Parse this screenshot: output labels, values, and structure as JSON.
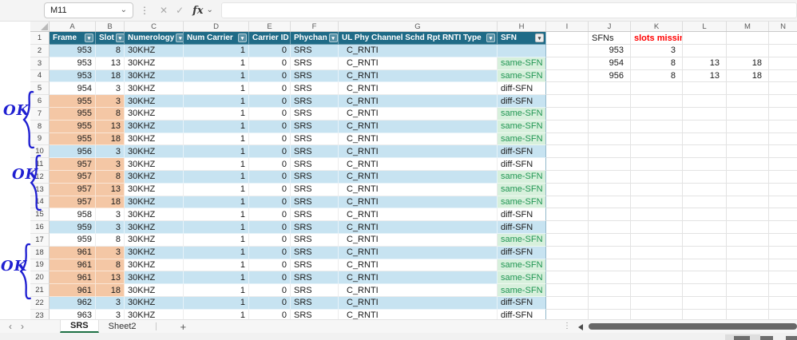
{
  "colors": {
    "header_fill": "#1F6B87",
    "band_blue": "#C7E3F1",
    "orange": "#F4C7A5",
    "green_bg": "#D7F0DC",
    "green_text": "#219653",
    "red": "#FF0000",
    "annotation_blue": "#1F1FD1",
    "tab_green": "#1D7044"
  },
  "icons": {
    "chevron_down": "⌄",
    "dots": "⋮",
    "cancel": "✕",
    "enter": "✓",
    "filter_chevron": "▾",
    "prev": "‹",
    "next": "›",
    "add": "+"
  },
  "formula_bar": {
    "name_box": "M11",
    "fx_label": "fx",
    "formula_value": ""
  },
  "grid": {
    "column_letters": [
      "A",
      "B",
      "C",
      "D",
      "E",
      "F",
      "G",
      "H",
      "I",
      "J",
      "K",
      "L",
      "M",
      "N"
    ],
    "row_numbers": [
      1,
      2,
      3,
      4,
      5,
      6,
      7,
      8,
      9,
      10,
      11,
      12,
      13,
      14,
      15,
      16,
      17,
      18,
      19,
      20,
      21,
      22,
      23
    ]
  },
  "table": {
    "headers": [
      "Frame",
      "Slot",
      "Numerology",
      "Num Carrier",
      "Carrier ID",
      "Phychan",
      "UL Phy Channel Schd Rpt RNTI Type",
      "SFN"
    ],
    "rows": [
      {
        "n": 2,
        "frame": "953",
        "slot": "8",
        "numerology": "30KHZ",
        "num_carrier": "1",
        "carrier_id": "0",
        "phychan": "SRS",
        "rnti_type": "C_RNTI",
        "sfn": "",
        "orange": false
      },
      {
        "n": 3,
        "frame": "953",
        "slot": "13",
        "numerology": "30KHZ",
        "num_carrier": "1",
        "carrier_id": "0",
        "phychan": "SRS",
        "rnti_type": "C_RNTI",
        "sfn": "same-SFN",
        "orange": false
      },
      {
        "n": 4,
        "frame": "953",
        "slot": "18",
        "numerology": "30KHZ",
        "num_carrier": "1",
        "carrier_id": "0",
        "phychan": "SRS",
        "rnti_type": "C_RNTI",
        "sfn": "same-SFN",
        "orange": false
      },
      {
        "n": 5,
        "frame": "954",
        "slot": "3",
        "numerology": "30KHZ",
        "num_carrier": "1",
        "carrier_id": "0",
        "phychan": "SRS",
        "rnti_type": "C_RNTI",
        "sfn": "diff-SFN",
        "orange": false
      },
      {
        "n": 6,
        "frame": "955",
        "slot": "3",
        "numerology": "30KHZ",
        "num_carrier": "1",
        "carrier_id": "0",
        "phychan": "SRS",
        "rnti_type": "C_RNTI",
        "sfn": "diff-SFN",
        "orange": true
      },
      {
        "n": 7,
        "frame": "955",
        "slot": "8",
        "numerology": "30KHZ",
        "num_carrier": "1",
        "carrier_id": "0",
        "phychan": "SRS",
        "rnti_type": "C_RNTI",
        "sfn": "same-SFN",
        "orange": true
      },
      {
        "n": 8,
        "frame": "955",
        "slot": "13",
        "numerology": "30KHZ",
        "num_carrier": "1",
        "carrier_id": "0",
        "phychan": "SRS",
        "rnti_type": "C_RNTI",
        "sfn": "same-SFN",
        "orange": true
      },
      {
        "n": 9,
        "frame": "955",
        "slot": "18",
        "numerology": "30KHZ",
        "num_carrier": "1",
        "carrier_id": "0",
        "phychan": "SRS",
        "rnti_type": "C_RNTI",
        "sfn": "same-SFN",
        "orange": true
      },
      {
        "n": 10,
        "frame": "956",
        "slot": "3",
        "numerology": "30KHZ",
        "num_carrier": "1",
        "carrier_id": "0",
        "phychan": "SRS",
        "rnti_type": "C_RNTI",
        "sfn": "diff-SFN",
        "orange": false
      },
      {
        "n": 11,
        "frame": "957",
        "slot": "3",
        "numerology": "30KHZ",
        "num_carrier": "1",
        "carrier_id": "0",
        "phychan": "SRS",
        "rnti_type": "C_RNTI",
        "sfn": "diff-SFN",
        "orange": true
      },
      {
        "n": 12,
        "frame": "957",
        "slot": "8",
        "numerology": "30KHZ",
        "num_carrier": "1",
        "carrier_id": "0",
        "phychan": "SRS",
        "rnti_type": "C_RNTI",
        "sfn": "same-SFN",
        "orange": true
      },
      {
        "n": 13,
        "frame": "957",
        "slot": "13",
        "numerology": "30KHZ",
        "num_carrier": "1",
        "carrier_id": "0",
        "phychan": "SRS",
        "rnti_type": "C_RNTI",
        "sfn": "same-SFN",
        "orange": true
      },
      {
        "n": 14,
        "frame": "957",
        "slot": "18",
        "numerology": "30KHZ",
        "num_carrier": "1",
        "carrier_id": "0",
        "phychan": "SRS",
        "rnti_type": "C_RNTI",
        "sfn": "same-SFN",
        "orange": true
      },
      {
        "n": 15,
        "frame": "958",
        "slot": "3",
        "numerology": "30KHZ",
        "num_carrier": "1",
        "carrier_id": "0",
        "phychan": "SRS",
        "rnti_type": "C_RNTI",
        "sfn": "diff-SFN",
        "orange": false
      },
      {
        "n": 16,
        "frame": "959",
        "slot": "3",
        "numerology": "30KHZ",
        "num_carrier": "1",
        "carrier_id": "0",
        "phychan": "SRS",
        "rnti_type": "C_RNTI",
        "sfn": "diff-SFN",
        "orange": false
      },
      {
        "n": 17,
        "frame": "959",
        "slot": "8",
        "numerology": "30KHZ",
        "num_carrier": "1",
        "carrier_id": "0",
        "phychan": "SRS",
        "rnti_type": "C_RNTI",
        "sfn": "same-SFN",
        "orange": false
      },
      {
        "n": 18,
        "frame": "961",
        "slot": "3",
        "numerology": "30KHZ",
        "num_carrier": "1",
        "carrier_id": "0",
        "phychan": "SRS",
        "rnti_type": "C_RNTI",
        "sfn": "diff-SFN",
        "orange": true
      },
      {
        "n": 19,
        "frame": "961",
        "slot": "8",
        "numerology": "30KHZ",
        "num_carrier": "1",
        "carrier_id": "0",
        "phychan": "SRS",
        "rnti_type": "C_RNTI",
        "sfn": "same-SFN",
        "orange": true
      },
      {
        "n": 20,
        "frame": "961",
        "slot": "13",
        "numerology": "30KHZ",
        "num_carrier": "1",
        "carrier_id": "0",
        "phychan": "SRS",
        "rnti_type": "C_RNTI",
        "sfn": "same-SFN",
        "orange": true
      },
      {
        "n": 21,
        "frame": "961",
        "slot": "18",
        "numerology": "30KHZ",
        "num_carrier": "1",
        "carrier_id": "0",
        "phychan": "SRS",
        "rnti_type": "C_RNTI",
        "sfn": "same-SFN",
        "orange": true
      },
      {
        "n": 22,
        "frame": "962",
        "slot": "3",
        "numerology": "30KHZ",
        "num_carrier": "1",
        "carrier_id": "0",
        "phychan": "SRS",
        "rnti_type": "C_RNTI",
        "sfn": "diff-SFN",
        "orange": false
      },
      {
        "n": 23,
        "frame": "963",
        "slot": "3",
        "numerology": "30KHZ",
        "num_carrier": "1",
        "carrier_id": "0",
        "phychan": "SRS",
        "rnti_type": "C_RNTI",
        "sfn": "diff-SFN",
        "orange": false
      }
    ]
  },
  "side_table": {
    "col1_header": "SFNs",
    "col2_header": "slots missing",
    "rows": {
      "2": [
        "953",
        "3",
        "",
        ""
      ],
      "3": [
        "954",
        "8",
        "13",
        "18"
      ],
      "4": [
        "956",
        "8",
        "13",
        "18"
      ]
    }
  },
  "annotations": {
    "groups": [
      {
        "label": "OK"
      },
      {
        "label": "OK"
      },
      {
        "label": "OK"
      }
    ]
  },
  "sheet_tabs": {
    "tabs": [
      {
        "label": "SRS",
        "active": true
      },
      {
        "label": "Sheet2",
        "active": false
      }
    ]
  }
}
